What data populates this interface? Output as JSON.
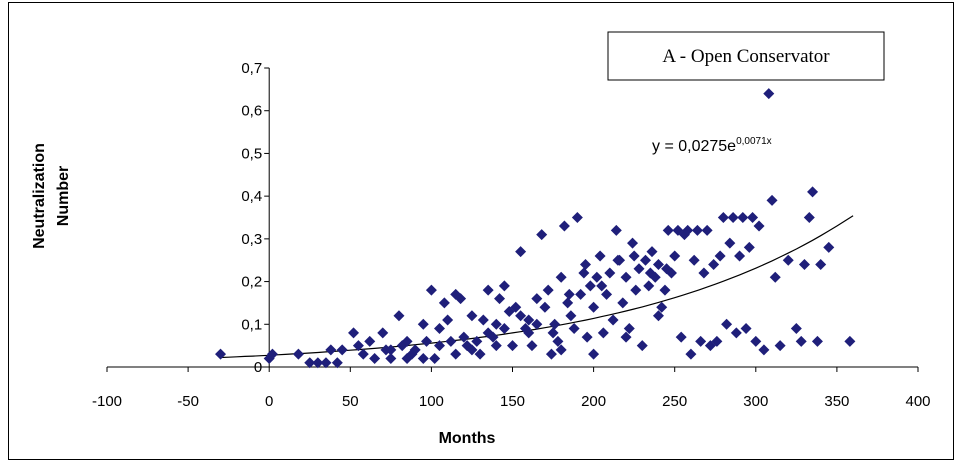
{
  "chart_data": {
    "type": "scatter",
    "title": "",
    "xlabel": "Months",
    "ylabel_line1": "Neutralization",
    "ylabel_line2": "Number",
    "xlim": [
      -100,
      400
    ],
    "ylim": [
      0,
      0.7
    ],
    "x_ticks": [
      -100,
      -50,
      0,
      50,
      100,
      150,
      200,
      250,
      300,
      350,
      400
    ],
    "x_tick_labels": [
      "-100",
      "-50",
      "0",
      "50",
      "100",
      "150",
      "200",
      "250",
      "300",
      "350",
      "400"
    ],
    "y_ticks": [
      0,
      0.1,
      0.2,
      0.3,
      0.4,
      0.5,
      0.6,
      0.7
    ],
    "y_tick_labels": [
      "0",
      "0,1",
      "0,2",
      "0,3",
      "0,4",
      "0,5",
      "0,6",
      "0,7"
    ],
    "legend_box_text": "A - Open Conservator",
    "trendline": {
      "type": "exponential",
      "a": 0.0275,
      "b": 0.0071,
      "x_range": [
        -30,
        360
      ],
      "label_main": "y = 0,0275e",
      "label_exp": "0,0071x"
    },
    "marker_color": "#1f1f7a",
    "grid": false,
    "series": [
      {
        "points": [
          [
            -30,
            0.03
          ],
          [
            0,
            0.02
          ],
          [
            2,
            0.03
          ],
          [
            18,
            0.03
          ],
          [
            25,
            0.01
          ],
          [
            30,
            0.01
          ],
          [
            35,
            0.01
          ],
          [
            38,
            0.04
          ],
          [
            42,
            0.01
          ],
          [
            45,
            0.04
          ],
          [
            52,
            0.08
          ],
          [
            55,
            0.05
          ],
          [
            58,
            0.03
          ],
          [
            62,
            0.06
          ],
          [
            65,
            0.02
          ],
          [
            70,
            0.08
          ],
          [
            72,
            0.04
          ],
          [
            75,
            0.02
          ],
          [
            80,
            0.12
          ],
          [
            82,
            0.05
          ],
          [
            85,
            0.02
          ],
          [
            88,
            0.03
          ],
          [
            90,
            0.04
          ],
          [
            95,
            0.1
          ],
          [
            97,
            0.06
          ],
          [
            100,
            0.18
          ],
          [
            102,
            0.02
          ],
          [
            105,
            0.09
          ],
          [
            108,
            0.15
          ],
          [
            110,
            0.11
          ],
          [
            112,
            0.06
          ],
          [
            115,
            0.17
          ],
          [
            118,
            0.16
          ],
          [
            120,
            0.07
          ],
          [
            122,
            0.05
          ],
          [
            125,
            0.12
          ],
          [
            128,
            0.06
          ],
          [
            130,
            0.03
          ],
          [
            132,
            0.11
          ],
          [
            135,
            0.18
          ],
          [
            138,
            0.07
          ],
          [
            140,
            0.1
          ],
          [
            142,
            0.16
          ],
          [
            145,
            0.19
          ],
          [
            148,
            0.13
          ],
          [
            150,
            0.05
          ],
          [
            152,
            0.14
          ],
          [
            155,
            0.27
          ],
          [
            158,
            0.09
          ],
          [
            160,
            0.11
          ],
          [
            162,
            0.05
          ],
          [
            165,
            0.16
          ],
          [
            168,
            0.31
          ],
          [
            170,
            0.14
          ],
          [
            172,
            0.18
          ],
          [
            174,
            0.03
          ],
          [
            176,
            0.1
          ],
          [
            178,
            0.06
          ],
          [
            180,
            0.21
          ],
          [
            182,
            0.33
          ],
          [
            184,
            0.15
          ],
          [
            186,
            0.12
          ],
          [
            188,
            0.09
          ],
          [
            190,
            0.35
          ],
          [
            192,
            0.17
          ],
          [
            194,
            0.22
          ],
          [
            196,
            0.07
          ],
          [
            198,
            0.19
          ],
          [
            200,
            0.14
          ],
          [
            202,
            0.21
          ],
          [
            204,
            0.26
          ],
          [
            206,
            0.08
          ],
          [
            208,
            0.17
          ],
          [
            210,
            0.22
          ],
          [
            212,
            0.11
          ],
          [
            214,
            0.32
          ],
          [
            216,
            0.25
          ],
          [
            218,
            0.15
          ],
          [
            220,
            0.21
          ],
          [
            222,
            0.09
          ],
          [
            224,
            0.29
          ],
          [
            226,
            0.18
          ],
          [
            228,
            0.23
          ],
          [
            230,
            0.05
          ],
          [
            232,
            0.25
          ],
          [
            234,
            0.19
          ],
          [
            236,
            0.27
          ],
          [
            238,
            0.21
          ],
          [
            240,
            0.24
          ],
          [
            242,
            0.14
          ],
          [
            244,
            0.18
          ],
          [
            246,
            0.32
          ],
          [
            248,
            0.22
          ],
          [
            250,
            0.26
          ],
          [
            252,
            0.32
          ],
          [
            254,
            0.07
          ],
          [
            256,
            0.31
          ],
          [
            258,
            0.32
          ],
          [
            260,
            0.03
          ],
          [
            262,
            0.25
          ],
          [
            264,
            0.32
          ],
          [
            266,
            0.06
          ],
          [
            268,
            0.22
          ],
          [
            270,
            0.32
          ],
          [
            272,
            0.05
          ],
          [
            274,
            0.24
          ],
          [
            276,
            0.06
          ],
          [
            278,
            0.26
          ],
          [
            280,
            0.35
          ],
          [
            282,
            0.1
          ],
          [
            284,
            0.29
          ],
          [
            286,
            0.35
          ],
          [
            288,
            0.08
          ],
          [
            290,
            0.26
          ],
          [
            292,
            0.35
          ],
          [
            294,
            0.09
          ],
          [
            296,
            0.28
          ],
          [
            298,
            0.35
          ],
          [
            300,
            0.06
          ],
          [
            302,
            0.33
          ],
          [
            305,
            0.04
          ],
          [
            308,
            0.64
          ],
          [
            310,
            0.39
          ],
          [
            312,
            0.21
          ],
          [
            315,
            0.05
          ],
          [
            320,
            0.25
          ],
          [
            325,
            0.09
          ],
          [
            328,
            0.06
          ],
          [
            330,
            0.24
          ],
          [
            333,
            0.35
          ],
          [
            335,
            0.41
          ],
          [
            338,
            0.06
          ],
          [
            340,
            0.24
          ],
          [
            345,
            0.28
          ],
          [
            358,
            0.06
          ],
          [
            140,
            0.05
          ],
          [
            160,
            0.08
          ],
          [
            180,
            0.04
          ],
          [
            200,
            0.03
          ],
          [
            220,
            0.07
          ],
          [
            240,
            0.12
          ],
          [
            195,
            0.24
          ],
          [
            205,
            0.19
          ],
          [
            215,
            0.25
          ],
          [
            225,
            0.26
          ],
          [
            235,
            0.22
          ],
          [
            245,
            0.23
          ],
          [
            185,
            0.17
          ],
          [
            175,
            0.08
          ],
          [
            165,
            0.1
          ],
          [
            155,
            0.12
          ],
          [
            145,
            0.09
          ],
          [
            135,
            0.08
          ],
          [
            125,
            0.04
          ],
          [
            115,
            0.03
          ],
          [
            105,
            0.05
          ],
          [
            95,
            0.02
          ],
          [
            85,
            0.06
          ],
          [
            75,
            0.04
          ]
        ]
      }
    ]
  }
}
